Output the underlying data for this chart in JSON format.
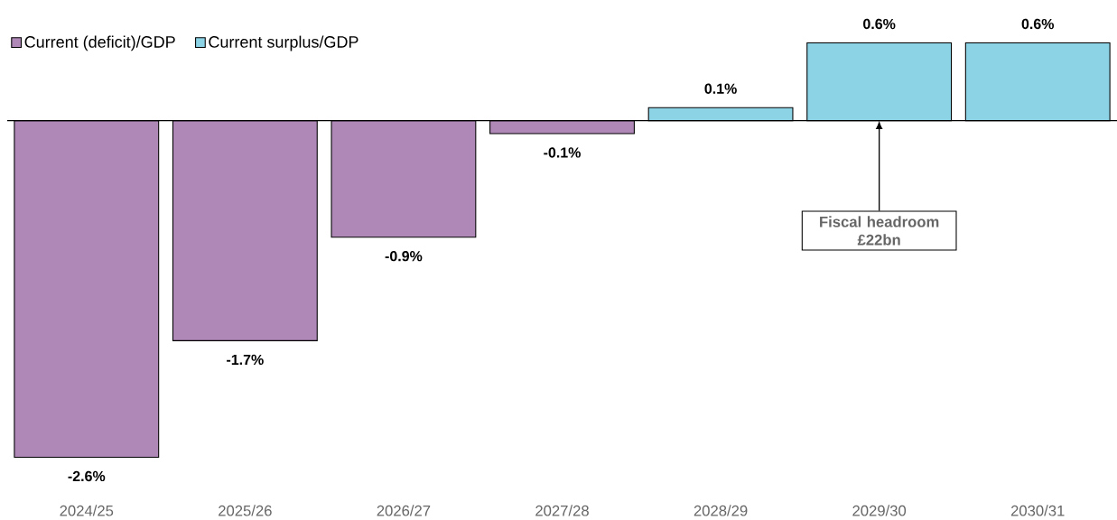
{
  "chart_data": {
    "type": "bar",
    "categories": [
      "2024/25",
      "2025/26",
      "2026/27",
      "2027/28",
      "2028/29",
      "2029/30",
      "2030/31"
    ],
    "series": [
      {
        "name": "Current (deficit)/GDP",
        "color": "#b088b8",
        "values": [
          -2.6,
          -1.7,
          -0.9,
          -0.1,
          null,
          null,
          null
        ],
        "value_labels": [
          "-2.6%",
          "-1.7%",
          "-0.9%",
          "-0.1%",
          null,
          null,
          null
        ]
      },
      {
        "name": "Current surplus/GDP",
        "color": "#8dd3e6",
        "values": [
          null,
          null,
          null,
          null,
          0.1,
          0.6,
          0.6
        ],
        "value_labels": [
          null,
          null,
          null,
          null,
          "0.1%",
          "0.6%",
          "0.6%"
        ]
      }
    ],
    "tick_labels": "x",
    "legend": "top left",
    "grid": false,
    "annotations": [
      {
        "text": "Fiscal headroom £22bn",
        "x": "2029/30",
        "y": 0
      }
    ]
  }
}
